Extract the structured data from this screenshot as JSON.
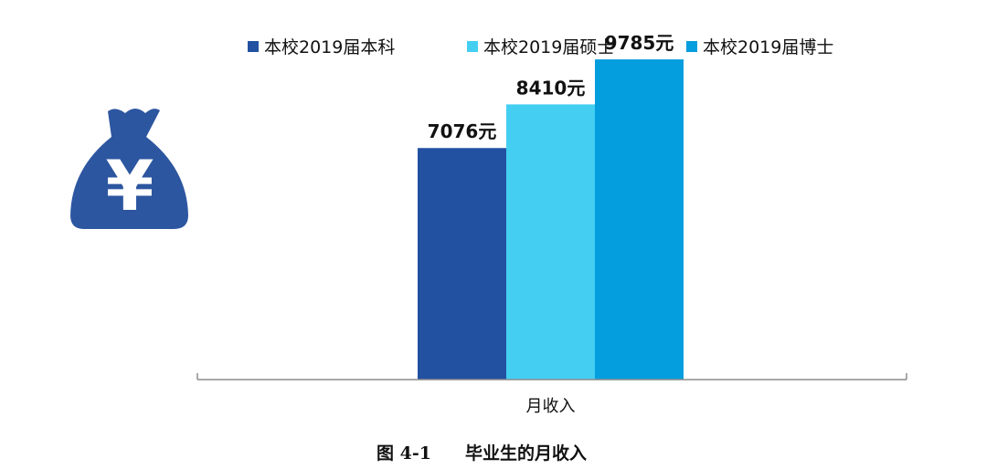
{
  "chart_data": {
    "type": "bar",
    "categories": [
      "月收入"
    ],
    "series": [
      {
        "name": "本校2019届本科",
        "values": [
          7076
        ],
        "label": "7076元",
        "color": "#2251A1"
      },
      {
        "name": "本校2019届硕士",
        "values": [
          8410
        ],
        "label": "8410元",
        "color": "#44CFF2"
      },
      {
        "name": "本校2019届博士",
        "values": [
          9785
        ],
        "label": "9785元",
        "color": "#049DDD"
      }
    ],
    "ylim": [
      0,
      11600
    ],
    "grid": false,
    "legend_position": "top"
  },
  "caption": {
    "figure_number": "图 4-1",
    "title": "毕业生的月收入"
  },
  "icon": {
    "name": "money-bag-yuan-icon",
    "glyph": "¥",
    "color": "#2D56A0"
  }
}
